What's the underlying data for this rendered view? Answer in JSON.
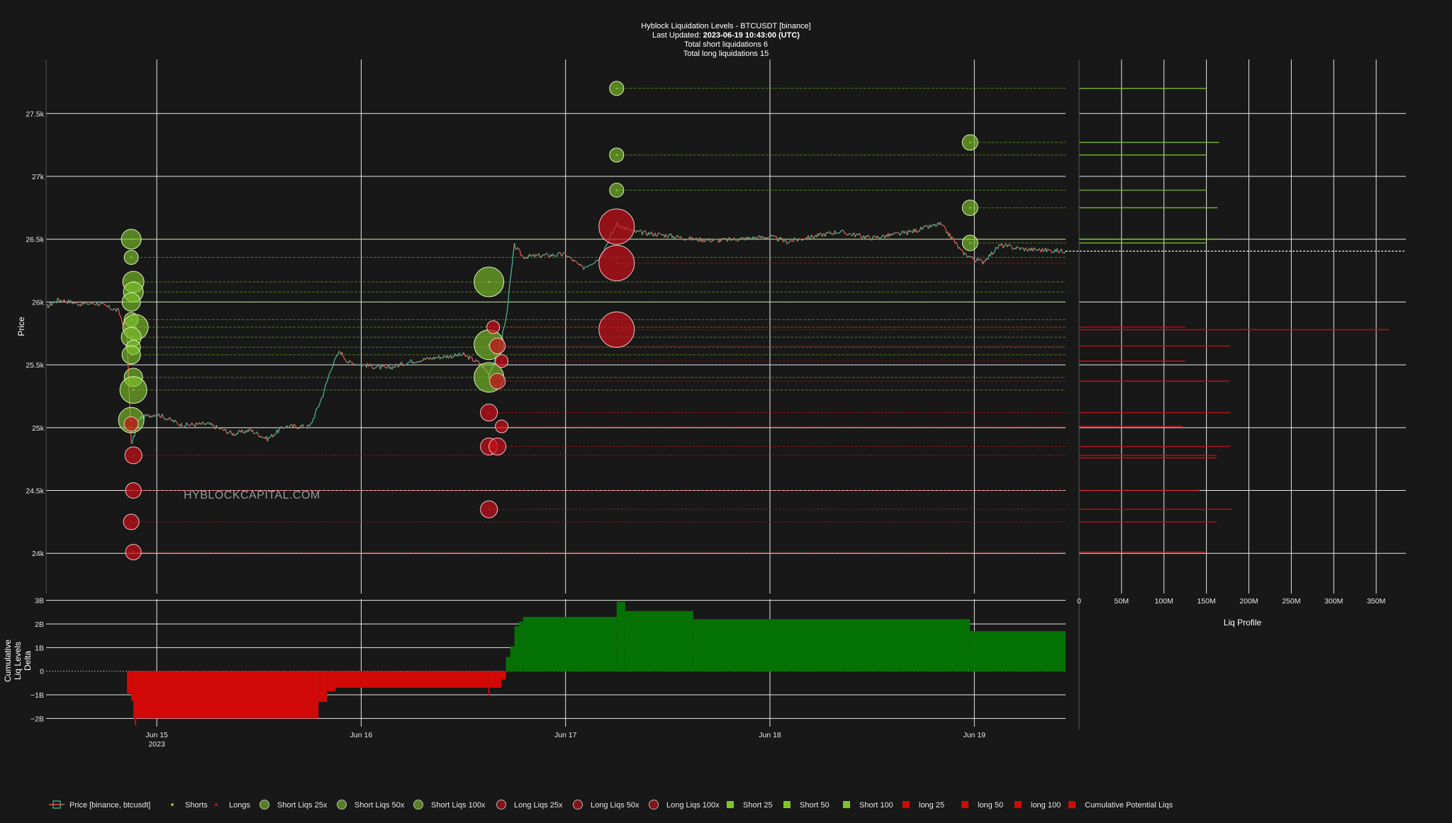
{
  "title": {
    "line1": "Hyblock Liquidation Levels - BTCUSDT [binance]",
    "updated_prefix": "Last Updated: ",
    "updated_value": "2023-06-19 10:43:00 (UTC)",
    "line3": "Total short liquidations 6",
    "line4": "Total long liquidations 15"
  },
  "watermark": "HYBLOCKCAPITAL.COM",
  "colors": {
    "background": "#181818",
    "short": "#7fc52a",
    "long": "#c8101a",
    "delta_pos": "#057205",
    "delta_neg": "#d10909",
    "price_up": "#4caf90",
    "price_down": "#e0584a"
  },
  "chart_data": [
    {
      "type": "scatter",
      "name": "main-price-liquidations",
      "ylabel": "Price",
      "y_ticks": [
        "24k",
        "24.5k",
        "25k",
        "25.5k",
        "26k",
        "26.5k",
        "27k",
        "27.5k"
      ],
      "y_tick_values": [
        24000,
        24500,
        25000,
        25500,
        26000,
        26500,
        27000,
        27500
      ],
      "ylim": [
        23680,
        27930
      ],
      "x_ticks": [
        "Jun 15",
        "Jun 16",
        "Jun 17",
        "Jun 18",
        "Jun 19"
      ],
      "x_sub_label": "2023",
      "xlim": [
        "2023-06-14 11:00",
        "2023-06-19 10:43"
      ],
      "last_price": 26405,
      "price_path": [
        [
          "2023-06-14 11:00",
          25960
        ],
        [
          "2023-06-14 12:30",
          26020
        ],
        [
          "2023-06-14 15:00",
          25985
        ],
        [
          "2023-06-14 17:00",
          25990
        ],
        [
          "2023-06-14 19:30",
          25930
        ],
        [
          "2023-06-14 20:30",
          25750
        ],
        [
          "2023-06-14 21:00",
          24860
        ],
        [
          "2023-06-14 22:00",
          25080
        ],
        [
          "2023-06-15 00:00",
          25110
        ],
        [
          "2023-06-15 03:00",
          25020
        ],
        [
          "2023-06-15 06:00",
          25030
        ],
        [
          "2023-06-15 09:00",
          24950
        ],
        [
          "2023-06-15 11:00",
          24980
        ],
        [
          "2023-06-15 13:00",
          24910
        ],
        [
          "2023-06-15 15:00",
          25010
        ],
        [
          "2023-06-15 18:00",
          25010
        ],
        [
          "2023-06-15 19:30",
          25260
        ],
        [
          "2023-06-15 20:30",
          25480
        ],
        [
          "2023-06-15 21:30",
          25610
        ],
        [
          "2023-06-15 22:30",
          25520
        ],
        [
          "2023-06-16 03:00",
          25470
        ],
        [
          "2023-06-16 06:00",
          25530
        ],
        [
          "2023-06-16 09:00",
          25560
        ],
        [
          "2023-06-16 12:00",
          25580
        ],
        [
          "2023-06-16 14:00",
          25510
        ],
        [
          "2023-06-16 15:00",
          25430
        ],
        [
          "2023-06-16 16:00",
          25580
        ],
        [
          "2023-06-16 17:00",
          25860
        ],
        [
          "2023-06-16 18:00",
          26450
        ],
        [
          "2023-06-16 19:00",
          26360
        ],
        [
          "2023-06-17 00:00",
          26380
        ],
        [
          "2023-06-17 02:00",
          26270
        ],
        [
          "2023-06-17 04:00",
          26350
        ],
        [
          "2023-06-17 06:00",
          26620
        ],
        [
          "2023-06-17 08:00",
          26560
        ],
        [
          "2023-06-17 12:00",
          26530
        ],
        [
          "2023-06-17 15:00",
          26500
        ],
        [
          "2023-06-17 18:00",
          26490
        ],
        [
          "2023-06-18 00:00",
          26520
        ],
        [
          "2023-06-18 02:00",
          26480
        ],
        [
          "2023-06-18 05:00",
          26520
        ],
        [
          "2023-06-18 08:00",
          26560
        ],
        [
          "2023-06-18 12:00",
          26510
        ],
        [
          "2023-06-18 16:00",
          26550
        ],
        [
          "2023-06-18 20:00",
          26620
        ],
        [
          "2023-06-18 21:30",
          26500
        ],
        [
          "2023-06-18 22:30",
          26400
        ],
        [
          "2023-06-19 00:00",
          26340
        ],
        [
          "2023-06-19 01:00",
          26320
        ],
        [
          "2023-06-19 03:00",
          26450
        ],
        [
          "2023-06-19 06:00",
          26420
        ],
        [
          "2023-06-19 10:43",
          26405
        ]
      ],
      "short_liqs": [
        {
          "x": "2023-06-14 21:00",
          "y": 26500,
          "r": 14
        },
        {
          "x": "2023-06-14 21:00",
          "y": 26355,
          "r": 10
        },
        {
          "x": "2023-06-14 21:15",
          "y": 26160,
          "r": 15
        },
        {
          "x": "2023-06-14 21:15",
          "y": 26080,
          "r": 14
        },
        {
          "x": "2023-06-14 21:00",
          "y": 26000,
          "r": 13
        },
        {
          "x": "2023-06-14 21:00",
          "y": 25860,
          "r": 10
        },
        {
          "x": "2023-06-14 21:30",
          "y": 25800,
          "r": 18
        },
        {
          "x": "2023-06-14 21:00",
          "y": 25720,
          "r": 14
        },
        {
          "x": "2023-06-14 21:15",
          "y": 25640,
          "r": 10
        },
        {
          "x": "2023-06-14 21:00",
          "y": 25580,
          "r": 13
        },
        {
          "x": "2023-06-14 21:15",
          "y": 25400,
          "r": 13
        },
        {
          "x": "2023-06-14 21:15",
          "y": 25300,
          "r": 19
        },
        {
          "x": "2023-06-14 21:00",
          "y": 25060,
          "r": 18
        },
        {
          "x": "2023-06-16 15:00",
          "y": 26160,
          "r": 21
        },
        {
          "x": "2023-06-16 15:00",
          "y": 25660,
          "r": 21
        },
        {
          "x": "2023-06-16 15:00",
          "y": 25400,
          "r": 21
        },
        {
          "x": "2023-06-17 06:00",
          "y": 27700,
          "r": 10
        },
        {
          "x": "2023-06-17 06:00",
          "y": 27170,
          "r": 10
        },
        {
          "x": "2023-06-17 06:00",
          "y": 26890,
          "r": 10
        },
        {
          "x": "2023-06-18 23:30",
          "y": 27270,
          "r": 11
        },
        {
          "x": "2023-06-18 23:30",
          "y": 26750,
          "r": 11
        },
        {
          "x": "2023-06-18 23:30",
          "y": 26470,
          "r": 11
        }
      ],
      "long_liqs": [
        {
          "x": "2023-06-14 21:00",
          "y": 25030,
          "r": 10
        },
        {
          "x": "2023-06-14 21:15",
          "y": 24780,
          "r": 12
        },
        {
          "x": "2023-06-14 21:15",
          "y": 24500,
          "r": 11
        },
        {
          "x": "2023-06-14 21:00",
          "y": 24250,
          "r": 11
        },
        {
          "x": "2023-06-14 21:15",
          "y": 24010,
          "r": 11
        },
        {
          "x": "2023-06-16 15:30",
          "y": 25800,
          "r": 9
        },
        {
          "x": "2023-06-16 16:00",
          "y": 25650,
          "r": 11
        },
        {
          "x": "2023-06-16 16:30",
          "y": 25530,
          "r": 9
        },
        {
          "x": "2023-06-16 16:00",
          "y": 25370,
          "r": 11
        },
        {
          "x": "2023-06-16 15:00",
          "y": 25120,
          "r": 12
        },
        {
          "x": "2023-06-16 16:30",
          "y": 25010,
          "r": 9
        },
        {
          "x": "2023-06-16 15:00",
          "y": 24850,
          "r": 12
        },
        {
          "x": "2023-06-16 16:00",
          "y": 24850,
          "r": 12
        },
        {
          "x": "2023-06-16 15:00",
          "y": 24350,
          "r": 12
        },
        {
          "x": "2023-06-17 06:00",
          "y": 26600,
          "r": 25
        },
        {
          "x": "2023-06-17 06:00",
          "y": 26310,
          "r": 25
        },
        {
          "x": "2023-06-17 06:00",
          "y": 25780,
          "r": 25
        }
      ],
      "short_levels": [
        {
          "y": 27700,
          "from": "2023-06-17 06:00"
        },
        {
          "y": 27270,
          "from": "2023-06-18 23:30"
        },
        {
          "y": 27170,
          "from": "2023-06-17 06:00"
        },
        {
          "y": 26890,
          "from": "2023-06-17 06:00"
        },
        {
          "y": 26750,
          "from": "2023-06-18 23:30"
        },
        {
          "y": 26470,
          "from": "2023-06-18 23:30"
        },
        {
          "y": 26500,
          "from": "2023-06-14 21:00"
        },
        {
          "y": 26355,
          "from": "2023-06-14 21:00"
        },
        {
          "y": 26160,
          "from": "2023-06-14 21:15"
        },
        {
          "y": 26080,
          "from": "2023-06-14 21:15"
        },
        {
          "y": 26000,
          "from": "2023-06-14 21:00"
        },
        {
          "y": 25860,
          "from": "2023-06-14 21:00"
        },
        {
          "y": 25800,
          "from": "2023-06-14 21:30"
        },
        {
          "y": 25720,
          "from": "2023-06-14 21:00"
        },
        {
          "y": 25640,
          "from": "2023-06-14 21:15"
        },
        {
          "y": 25580,
          "from": "2023-06-14 21:00"
        },
        {
          "y": 25400,
          "from": "2023-06-14 21:15"
        },
        {
          "y": 25300,
          "from": "2023-06-14 21:15"
        }
      ],
      "long_levels": [
        {
          "y": 26310,
          "from": "2023-06-17 06:00"
        },
        {
          "y": 25800,
          "from": "2023-06-16 15:30"
        },
        {
          "y": 25780,
          "from": "2023-06-17 06:00"
        },
        {
          "y": 25650,
          "from": "2023-06-16 16:00"
        },
        {
          "y": 25530,
          "from": "2023-06-16 16:30"
        },
        {
          "y": 25370,
          "from": "2023-06-16 16:00"
        },
        {
          "y": 25120,
          "from": "2023-06-16 15:00"
        },
        {
          "y": 25010,
          "from": "2023-06-16 16:30"
        },
        {
          "y": 24850,
          "from": "2023-06-16 15:00"
        },
        {
          "y": 24780,
          "from": "2023-06-14 21:15"
        },
        {
          "y": 24500,
          "from": "2023-06-14 21:15"
        },
        {
          "y": 24350,
          "from": "2023-06-16 15:00"
        },
        {
          "y": 24250,
          "from": "2023-06-14 21:00"
        },
        {
          "y": 24010,
          "from": "2023-06-14 21:15"
        }
      ]
    },
    {
      "type": "bar",
      "name": "liq-profile",
      "orientation": "horizontal",
      "xlabel": "Liq Profile",
      "x_ticks": [
        "0",
        "50M",
        "100M",
        "150M",
        "200M",
        "250M",
        "300M",
        "350M"
      ],
      "x_tick_values": [
        0,
        50,
        100,
        150,
        200,
        250,
        300,
        350
      ],
      "xlim": [
        0,
        385
      ],
      "unit": "M",
      "short_bars": [
        {
          "y": 27700,
          "value": 150
        },
        {
          "y": 27270,
          "value": 165
        },
        {
          "y": 27170,
          "value": 150
        },
        {
          "y": 26890,
          "value": 150
        },
        {
          "y": 26750,
          "value": 163
        },
        {
          "y": 26500,
          "value": 165
        },
        {
          "y": 26470,
          "value": 150
        }
      ],
      "long_bars": [
        {
          "y": 25800,
          "value": 125
        },
        {
          "y": 25780,
          "value": 365
        },
        {
          "y": 25650,
          "value": 178
        },
        {
          "y": 25530,
          "value": 125
        },
        {
          "y": 25370,
          "value": 177
        },
        {
          "y": 25120,
          "value": 178
        },
        {
          "y": 25010,
          "value": 122
        },
        {
          "y": 24850,
          "value": 178
        },
        {
          "y": 24780,
          "value": 162
        },
        {
          "y": 24760,
          "value": 162
        },
        {
          "y": 24500,
          "value": 142
        },
        {
          "y": 24350,
          "value": 180
        },
        {
          "y": 24250,
          "value": 162
        },
        {
          "y": 24010,
          "value": 150
        }
      ]
    },
    {
      "type": "area",
      "name": "cumulative-liq-levels-delta",
      "ylabel": "Cumulative Liq Levels Delta",
      "ylabel_lines": [
        "Cumulative",
        "Liq Levels",
        "Delta"
      ],
      "y_ticks": [
        "−2B",
        "−1B",
        "0",
        "1B",
        "2B",
        "3B"
      ],
      "y_tick_values": [
        -2,
        -1,
        0,
        1,
        2,
        3
      ],
      "ylim": [
        -2.35,
        3.05
      ],
      "unit": "B",
      "steps": [
        [
          "2023-06-14 11:00",
          0
        ],
        [
          "2023-06-14 20:30",
          -0.95
        ],
        [
          "2023-06-14 21:00",
          -1.25
        ],
        [
          "2023-06-14 21:15",
          -2.0
        ],
        [
          "2023-06-15 19:00",
          -1.3
        ],
        [
          "2023-06-15 20:00",
          -0.85
        ],
        [
          "2023-06-15 21:00",
          -0.7
        ],
        [
          "2023-06-16 15:00",
          -0.7
        ],
        [
          "2023-06-16 16:30",
          -0.35
        ],
        [
          "2023-06-16 17:00",
          0.6
        ],
        [
          "2023-06-16 17:30",
          1.05
        ],
        [
          "2023-06-16 18:00",
          1.9
        ],
        [
          "2023-06-16 18:30",
          2.1
        ],
        [
          "2023-06-16 19:00",
          2.3
        ],
        [
          "2023-06-17 06:00",
          2.95
        ],
        [
          "2023-06-17 07:00",
          2.55
        ],
        [
          "2023-06-17 15:00",
          2.2
        ],
        [
          "2023-06-18 23:30",
          1.7
        ],
        [
          "2023-06-19 10:43",
          1.7
        ]
      ]
    }
  ],
  "legend": [
    {
      "label": "Price [binance, btcusdt]",
      "kind": "candle",
      "color": "#4caf90"
    },
    {
      "label": "Shorts",
      "kind": "dot",
      "color": "#7fc52a"
    },
    {
      "label": "Longs",
      "kind": "dot",
      "color": "#c8101a"
    },
    {
      "label": "Short Liqs 25x",
      "kind": "circle",
      "color": "#7fc52a"
    },
    {
      "label": "Short Liqs 50x",
      "kind": "circle",
      "color": "#7fc52a"
    },
    {
      "label": "Short Liqs 100x",
      "kind": "circle",
      "color": "#7fc52a"
    },
    {
      "label": "Long Liqs 25x",
      "kind": "circle",
      "color": "#c8101a"
    },
    {
      "label": "Long Liqs 50x",
      "kind": "circle",
      "color": "#c8101a"
    },
    {
      "label": "Long Liqs 100x",
      "kind": "circle",
      "color": "#c8101a"
    },
    {
      "label": "Short 25",
      "kind": "square",
      "color": "#7fc52a"
    },
    {
      "label": "Short 50",
      "kind": "square",
      "color": "#7fc52a"
    },
    {
      "label": "Short 100",
      "kind": "square",
      "color": "#7fc52a"
    },
    {
      "label": "long 25",
      "kind": "square",
      "color": "#d10909"
    },
    {
      "label": "long 50",
      "kind": "square",
      "color": "#d10909"
    },
    {
      "label": "long 100",
      "kind": "square",
      "color": "#d10909"
    },
    {
      "label": "Cumulative Potential Liqs",
      "kind": "square",
      "color": "#d10909"
    }
  ]
}
